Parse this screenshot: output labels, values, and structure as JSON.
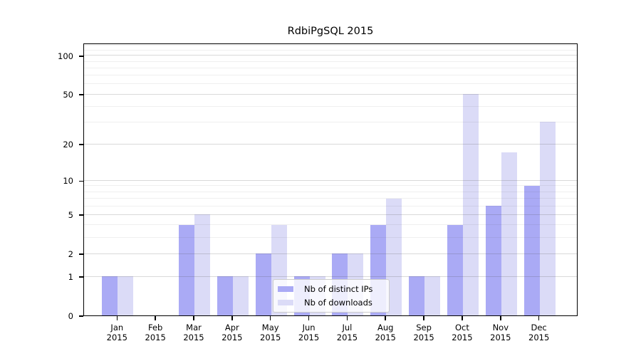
{
  "title": "RdbiPgSQL 2015",
  "colors": {
    "distinct_ips_bar": "#aaaaf5",
    "downloads_bar": "#dbdbf7",
    "spine": "#000000",
    "grid_major": "#cccccc",
    "grid_minor": "#ececec",
    "legend_border": "#cccccc"
  },
  "legend": {
    "position": "lower center",
    "items": [
      {
        "label": "Nb of distinct IPs",
        "series_key": "distinct_ips"
      },
      {
        "label": "Nb of downloads",
        "series_key": "downloads"
      }
    ]
  },
  "chart_data": {
    "type": "bar",
    "title": "RdbiPgSQL 2015",
    "categories": [
      "Jan 2015",
      "Feb 2015",
      "Mar 2015",
      "Apr 2015",
      "May 2015",
      "Jun 2015",
      "Jul 2015",
      "Aug 2015",
      "Sep 2015",
      "Oct 2015",
      "Nov 2015",
      "Dec 2015"
    ],
    "month_labels": [
      "Jan",
      "Feb",
      "Mar",
      "Apr",
      "May",
      "Jun",
      "Jul",
      "Aug",
      "Sep",
      "Oct",
      "Nov",
      "Dec"
    ],
    "year_label": "2015",
    "series": [
      {
        "name": "Nb of distinct IPs",
        "color": "#aaaaf5",
        "values": [
          1,
          0,
          4,
          1,
          2,
          1,
          2,
          4,
          1,
          4,
          6,
          9
        ]
      },
      {
        "name": "Nb of downloads",
        "color": "#dbdbf7",
        "values": [
          1,
          0,
          5,
          1,
          4,
          1,
          2,
          7,
          1,
          50,
          17,
          30
        ]
      }
    ],
    "xlabel": "",
    "ylabel": "",
    "yscale": "log10(1+v)",
    "y_ticks": [
      0,
      1,
      2,
      5,
      10,
      20,
      50,
      100
    ],
    "y_minor_gridlines": [
      3,
      4,
      6,
      7,
      8,
      9,
      30,
      40,
      60,
      70,
      80,
      90,
      110,
      120
    ],
    "ylim": [
      0,
      126
    ],
    "grid": true,
    "legend_position": "lower center"
  }
}
